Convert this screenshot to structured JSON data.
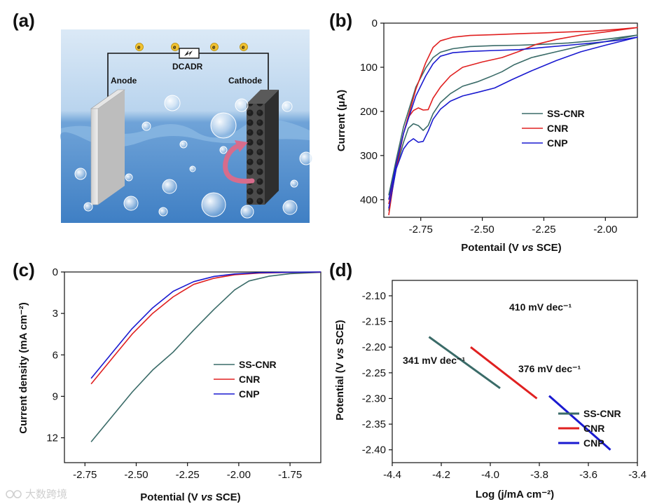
{
  "panels": {
    "a": "(a)",
    "b": "(b)",
    "c": "(c)",
    "d": "(d)"
  },
  "schematic": {
    "anode": "Anode",
    "cathode": "Cathode",
    "device": "DCADR",
    "electron": "e"
  },
  "colors": {
    "ss_cnr": "#3a6b68",
    "cnr": "#e02020",
    "cnp": "#1a1ad0",
    "water_top": "#bcd6ee",
    "water_bottom": "#4a86c8"
  },
  "watermark": "大数跨境",
  "chart_data": [
    {
      "id": "b",
      "type": "line",
      "xlabel_parts": [
        "Potentail (V ",
        "vs",
        " SCE)"
      ],
      "ylabel": "Current (μA)",
      "xlim": [
        -2.9,
        -1.87
      ],
      "ylim": [
        0,
        440
      ],
      "y_inverted": true,
      "xticks": [
        -2.75,
        -2.5,
        -2.25,
        -2.0
      ],
      "xtick_labels": [
        "-2.75",
        "-2.50",
        "-2.25",
        "-2.00"
      ],
      "yticks": [
        0,
        100,
        200,
        300,
        400
      ],
      "ytick_labels": [
        "0",
        "100",
        "200",
        "300",
        "400"
      ],
      "legend": [
        "SS-CNR",
        "CNR",
        "CNP"
      ],
      "series": [
        {
          "name": "SS-CNR",
          "color": "#3a6b68",
          "points": [
            [
              -2.88,
              425
            ],
            [
              -2.85,
              330
            ],
            [
              -2.82,
              270
            ],
            [
              -2.8,
              238
            ],
            [
              -2.78,
              228
            ],
            [
              -2.76,
              232
            ],
            [
              -2.74,
              243
            ],
            [
              -2.72,
              232
            ],
            [
              -2.7,
              205
            ],
            [
              -2.67,
              180
            ],
            [
              -2.63,
              160
            ],
            [
              -2.58,
              143
            ],
            [
              -2.52,
              133
            ],
            [
              -2.47,
              122
            ],
            [
              -2.42,
              110
            ],
            [
              -2.37,
              94
            ],
            [
              -2.3,
              78
            ],
            [
              -2.2,
              65
            ],
            [
              -2.1,
              52
            ],
            [
              -2.0,
              42
            ],
            [
              -1.87,
              27
            ],
            [
              -1.95,
              33
            ],
            [
              -2.05,
              40
            ],
            [
              -2.15,
              45
            ],
            [
              -2.25,
              48
            ],
            [
              -2.35,
              50
            ],
            [
              -2.45,
              51
            ],
            [
              -2.55,
              53
            ],
            [
              -2.62,
              58
            ],
            [
              -2.67,
              66
            ],
            [
              -2.7,
              78
            ],
            [
              -2.73,
              102
            ],
            [
              -2.77,
              145
            ],
            [
              -2.82,
              235
            ],
            [
              -2.85,
              310
            ],
            [
              -2.88,
              390
            ]
          ]
        },
        {
          "name": "CNR",
          "color": "#e02020",
          "points": [
            [
              -2.88,
              435
            ],
            [
              -2.85,
              320
            ],
            [
              -2.82,
              250
            ],
            [
              -2.8,
              213
            ],
            [
              -2.78,
              198
            ],
            [
              -2.76,
              192
            ],
            [
              -2.74,
              197
            ],
            [
              -2.72,
              196
            ],
            [
              -2.7,
              170
            ],
            [
              -2.67,
              145
            ],
            [
              -2.63,
              120
            ],
            [
              -2.58,
              100
            ],
            [
              -2.5,
              88
            ],
            [
              -2.42,
              78
            ],
            [
              -2.35,
              64
            ],
            [
              -2.28,
              48
            ],
            [
              -2.2,
              37
            ],
            [
              -2.1,
              27
            ],
            [
              -2.0,
              20
            ],
            [
              -1.87,
              10
            ],
            [
              -1.95,
              14
            ],
            [
              -2.05,
              18
            ],
            [
              -2.15,
              20
            ],
            [
              -2.25,
              22
            ],
            [
              -2.35,
              24
            ],
            [
              -2.45,
              26
            ],
            [
              -2.55,
              28
            ],
            [
              -2.62,
              32
            ],
            [
              -2.67,
              40
            ],
            [
              -2.7,
              55
            ],
            [
              -2.73,
              90
            ],
            [
              -2.77,
              150
            ],
            [
              -2.82,
              250
            ],
            [
              -2.85,
              330
            ],
            [
              -2.88,
              410
            ]
          ]
        },
        {
          "name": "CNP",
          "color": "#1a1ad0",
          "points": [
            [
              -2.88,
              420
            ],
            [
              -2.85,
              330
            ],
            [
              -2.82,
              285
            ],
            [
              -2.8,
              270
            ],
            [
              -2.78,
              262
            ],
            [
              -2.76,
              270
            ],
            [
              -2.74,
              268
            ],
            [
              -2.72,
              245
            ],
            [
              -2.7,
              218
            ],
            [
              -2.67,
              195
            ],
            [
              -2.63,
              177
            ],
            [
              -2.58,
              165
            ],
            [
              -2.52,
              157
            ],
            [
              -2.45,
              147
            ],
            [
              -2.38,
              128
            ],
            [
              -2.3,
              108
            ],
            [
              -2.2,
              85
            ],
            [
              -2.1,
              65
            ],
            [
              -2.0,
              50
            ],
            [
              -1.87,
              32
            ],
            [
              -1.95,
              39
            ],
            [
              -2.05,
              45
            ],
            [
              -2.15,
              50
            ],
            [
              -2.25,
              55
            ],
            [
              -2.35,
              60
            ],
            [
              -2.45,
              62
            ],
            [
              -2.55,
              64
            ],
            [
              -2.62,
              67
            ],
            [
              -2.67,
              75
            ],
            [
              -2.7,
              92
            ],
            [
              -2.73,
              120
            ],
            [
              -2.77,
              165
            ],
            [
              -2.82,
              250
            ],
            [
              -2.85,
              320
            ],
            [
              -2.88,
              400
            ]
          ]
        }
      ]
    },
    {
      "id": "c",
      "type": "line",
      "xlabel_parts": [
        "Potential (V ",
        "vs",
        " SCE)"
      ],
      "ylabel": "Current density (mA cm⁻²)",
      "xlim": [
        -2.85,
        -1.6
      ],
      "ylim": [
        0,
        13.8
      ],
      "y_inverted": true,
      "xticks": [
        -2.75,
        -2.5,
        -2.25,
        -2.0,
        -1.75
      ],
      "xtick_labels": [
        "-2.75",
        "-2.50",
        "-2.25",
        "-2.00",
        "-1.75"
      ],
      "yticks": [
        0,
        3,
        6,
        9,
        12
      ],
      "ytick_labels": [
        "0",
        "3",
        "6",
        "9",
        "12"
      ],
      "legend": [
        "SS-CNR",
        "CNR",
        "CNP"
      ],
      "series": [
        {
          "name": "SS-CNR",
          "color": "#3a6b68",
          "points": [
            [
              -2.72,
              12.3
            ],
            [
              -2.62,
              10.5
            ],
            [
              -2.52,
              8.7
            ],
            [
              -2.42,
              7.1
            ],
            [
              -2.32,
              5.8
            ],
            [
              -2.22,
              4.2
            ],
            [
              -2.12,
              2.7
            ],
            [
              -2.02,
              1.3
            ],
            [
              -1.95,
              0.65
            ],
            [
              -1.85,
              0.3
            ],
            [
              -1.75,
              0.12
            ],
            [
              -1.6,
              0.02
            ]
          ]
        },
        {
          "name": "CNR",
          "color": "#e02020",
          "points": [
            [
              -2.72,
              8.1
            ],
            [
              -2.62,
              6.3
            ],
            [
              -2.52,
              4.5
            ],
            [
              -2.42,
              3.0
            ],
            [
              -2.32,
              1.8
            ],
            [
              -2.22,
              0.9
            ],
            [
              -2.12,
              0.45
            ],
            [
              -2.02,
              0.2
            ],
            [
              -1.9,
              0.08
            ],
            [
              -1.75,
              0.03
            ],
            [
              -1.6,
              0.01
            ]
          ]
        },
        {
          "name": "CNP",
          "color": "#1a1ad0",
          "points": [
            [
              -2.72,
              7.7
            ],
            [
              -2.62,
              5.9
            ],
            [
              -2.52,
              4.1
            ],
            [
              -2.42,
              2.6
            ],
            [
              -2.32,
              1.4
            ],
            [
              -2.22,
              0.7
            ],
            [
              -2.12,
              0.32
            ],
            [
              -2.02,
              0.14
            ],
            [
              -1.9,
              0.05
            ],
            [
              -1.75,
              0.02
            ],
            [
              -1.6,
              0.0
            ]
          ]
        }
      ]
    },
    {
      "id": "d",
      "type": "line",
      "xlabel": "Log (j/mA cm⁻²)",
      "ylabel_parts": [
        "Potential (V ",
        "vs",
        " SCE)"
      ],
      "xlim": [
        -4.4,
        -3.4
      ],
      "ylim": [
        -2.07,
        -2.425
      ],
      "xticks": [
        -4.4,
        -4.2,
        -4.0,
        -3.8,
        -3.6,
        -3.4
      ],
      "xtick_labels": [
        "-4.4",
        "-4.2",
        "-4.0",
        "-3.8",
        "-3.6",
        "-3.4"
      ],
      "yticks": [
        -2.4,
        -2.35,
        -2.3,
        -2.25,
        -2.2,
        -2.15,
        -2.1
      ],
      "ytick_labels": [
        "-2.40",
        "-2.35",
        "-2.30",
        "-2.25",
        "-2.20",
        "-2.15",
        "-2.10"
      ],
      "legend": [
        "SS-CNR",
        "CNR",
        "CNP"
      ],
      "annotations": [
        "341 mV dec⁻¹",
        "376 mV dec⁻¹",
        "410 mV dec⁻¹"
      ],
      "series": [
        {
          "name": "SS-CNR",
          "color": "#3a6b68",
          "points": [
            [
              -4.25,
              -2.18
            ],
            [
              -3.96,
              -2.28
            ]
          ]
        },
        {
          "name": "CNR",
          "color": "#e02020",
          "points": [
            [
              -4.08,
              -2.2
            ],
            [
              -3.81,
              -2.3
            ]
          ]
        },
        {
          "name": "CNP",
          "color": "#1a1ad0",
          "points": [
            [
              -3.76,
              -2.295
            ],
            [
              -3.51,
              -2.4
            ]
          ]
        }
      ]
    }
  ]
}
